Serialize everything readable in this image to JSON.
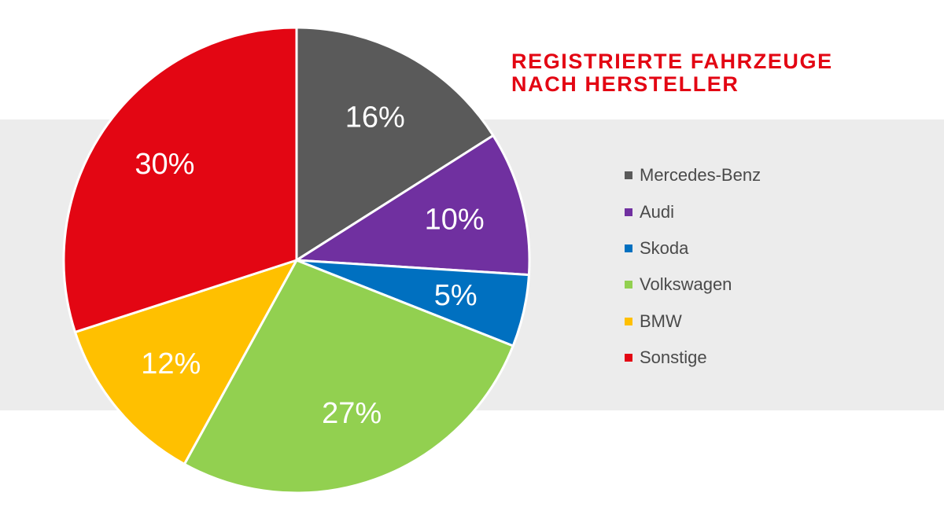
{
  "title": {
    "line1": "REGISTRIERTE FAHRZEUGE",
    "line2": "NACH HERSTELLER"
  },
  "chart_data": {
    "type": "pie",
    "title": "REGISTRIERTE FAHRZEUGE NACH HERSTELLER",
    "start_angle_deg": 0,
    "direction": "clockwise",
    "legend_position": "right",
    "slices": [
      {
        "name": "Mercedes-Benz",
        "value": 16,
        "label": "16%",
        "color": "#5a5a5a"
      },
      {
        "name": "Audi",
        "value": 10,
        "label": "10%",
        "color": "#7030a0"
      },
      {
        "name": "Skoda",
        "value": 5,
        "label": "5%",
        "color": "#0070c0"
      },
      {
        "name": "Volkswagen",
        "value": 27,
        "label": "27%",
        "color": "#92d050"
      },
      {
        "name": "BMW",
        "value": 12,
        "label": "12%",
        "color": "#ffc000"
      },
      {
        "name": "Sonstige",
        "value": 30,
        "label": "30%",
        "color": "#e30613"
      }
    ]
  }
}
